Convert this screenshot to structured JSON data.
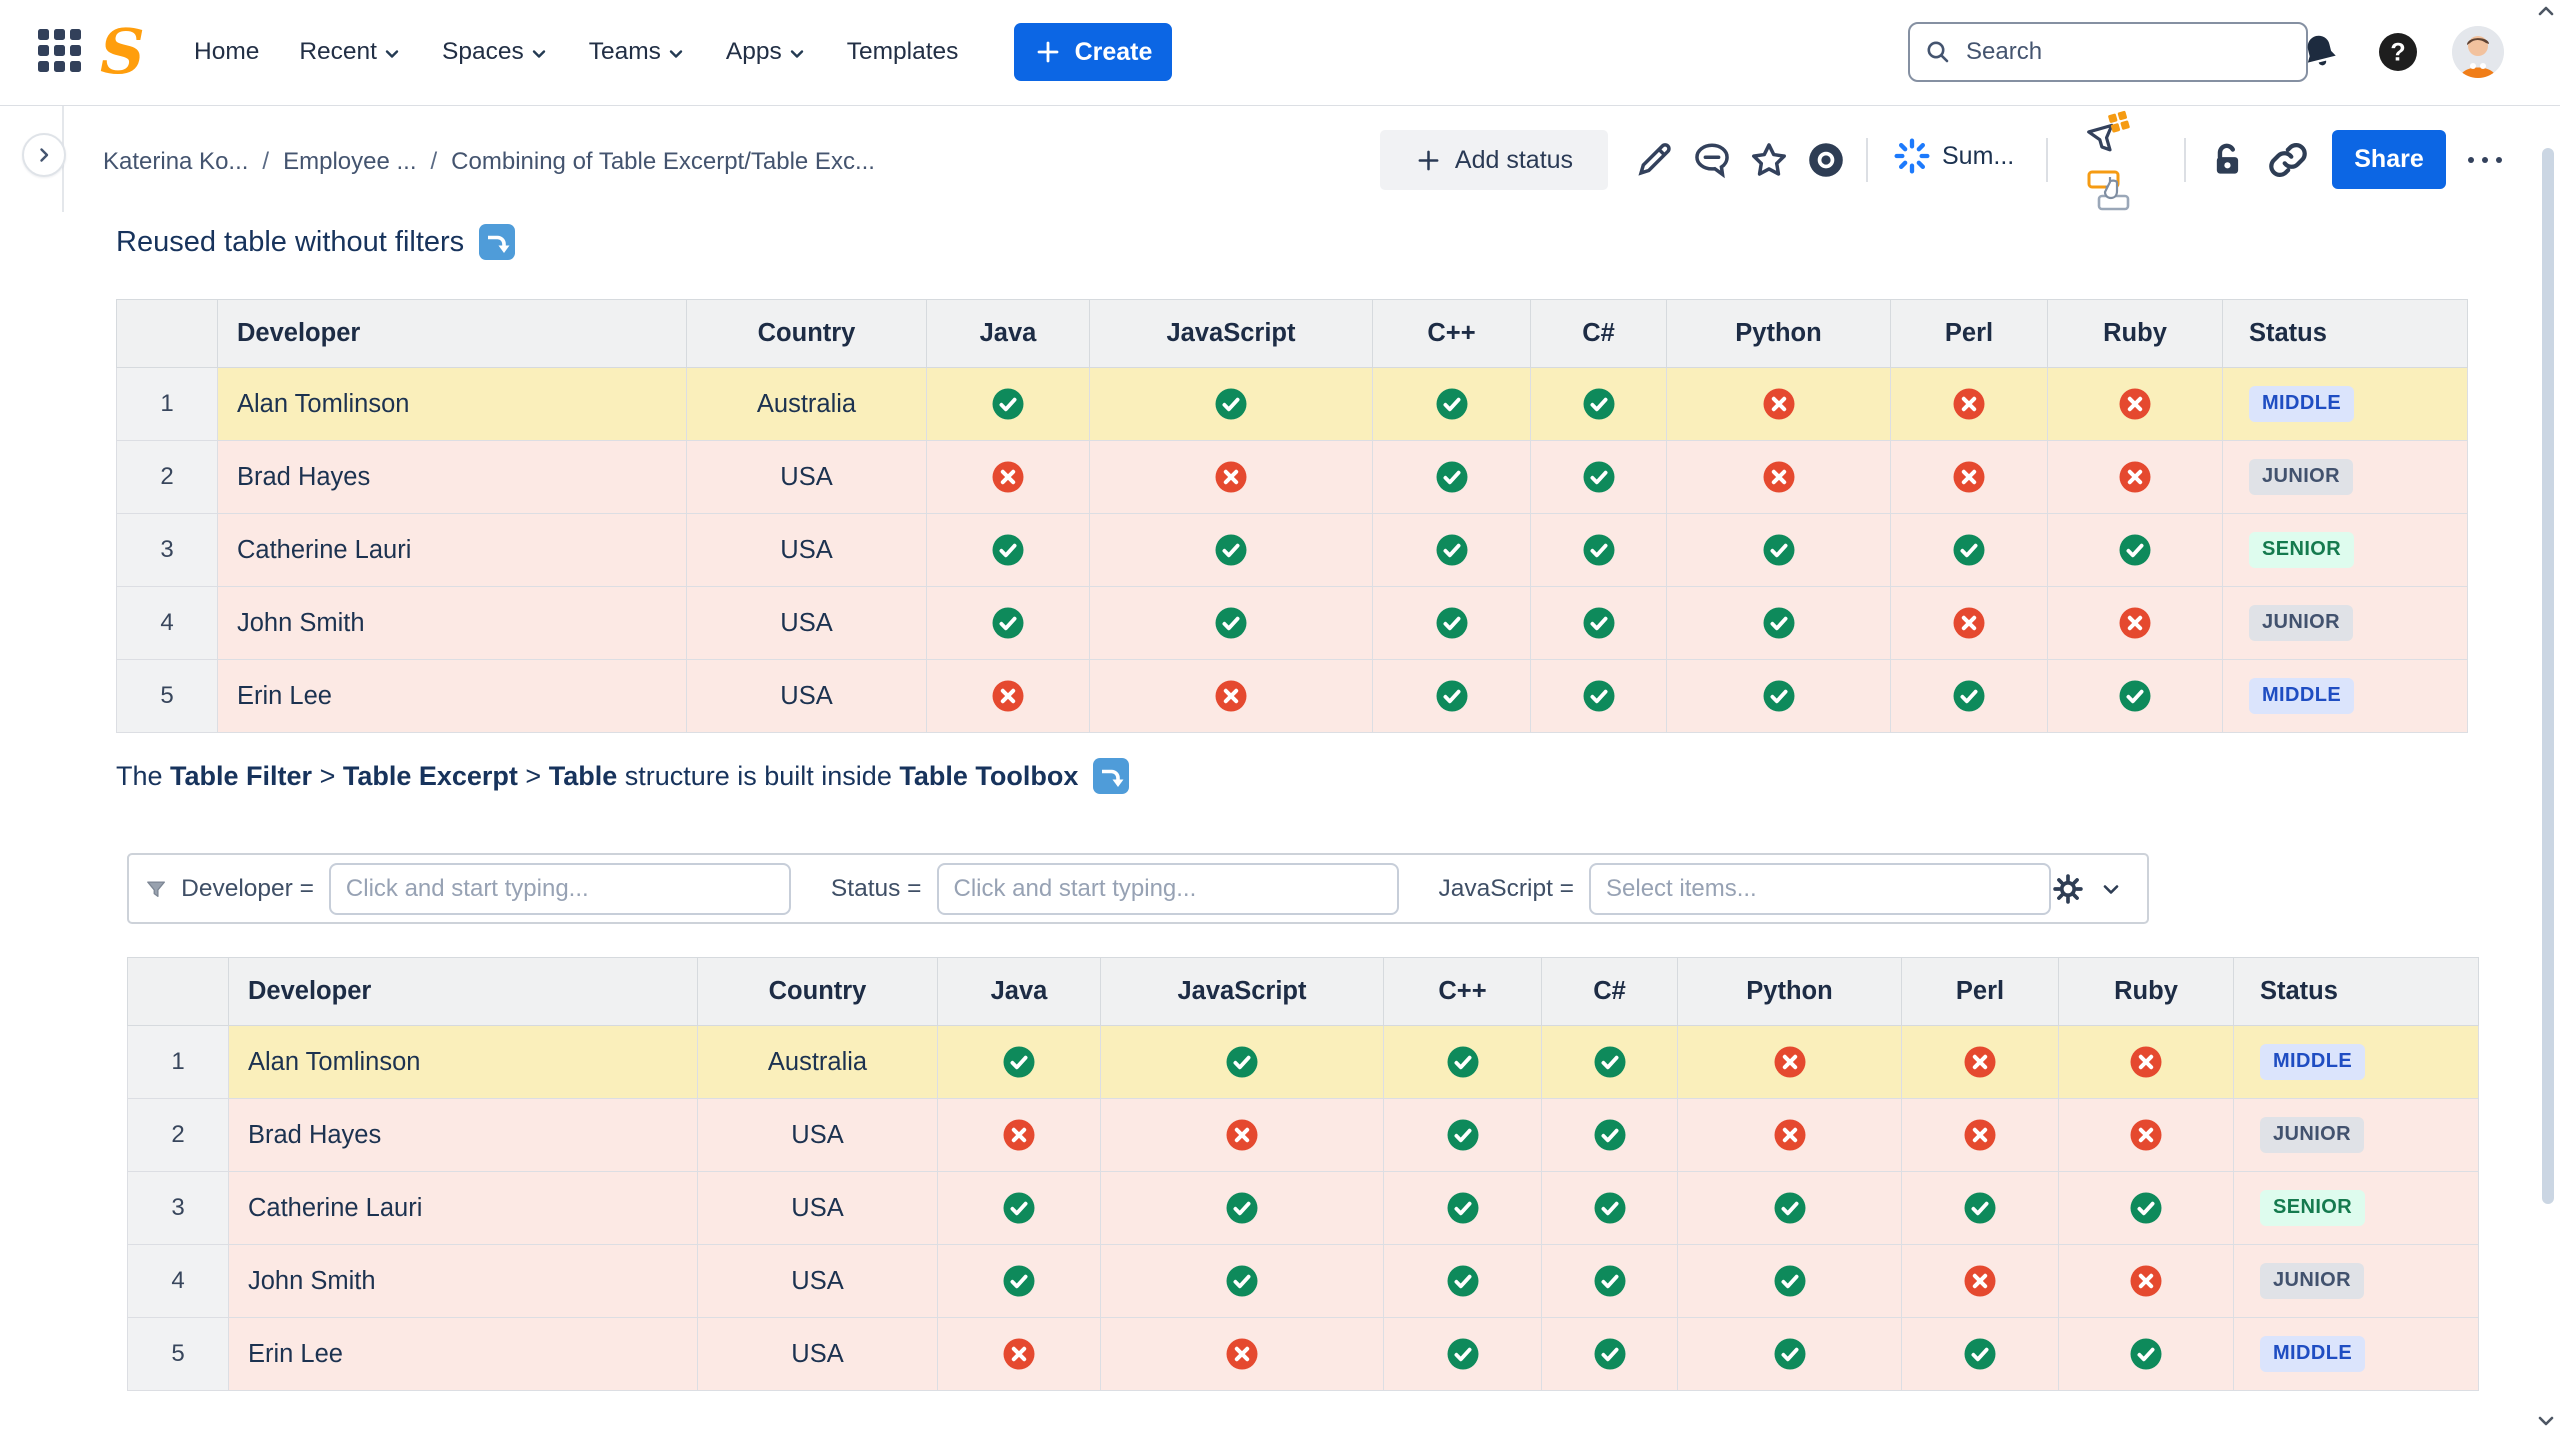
{
  "topbar": {
    "nav": [
      {
        "label": "Home",
        "chevron": false
      },
      {
        "label": "Recent",
        "chevron": true
      },
      {
        "label": "Spaces",
        "chevron": true
      },
      {
        "label": "Teams",
        "chevron": true
      },
      {
        "label": "Apps",
        "chevron": true
      },
      {
        "label": "Templates",
        "chevron": false
      }
    ],
    "create_label": "Create",
    "search_placeholder": "Search"
  },
  "page_header": {
    "breadcrumbs": [
      "Katerina Ko...",
      "Employee ...",
      "Combining of Table Excerpt/Table Exc..."
    ],
    "add_status_label": "Add status",
    "summarize_label": "Sum...",
    "share_label": "Share"
  },
  "content": {
    "section1_heading": "Reused table without filters",
    "paragraph_segments": [
      {
        "text": "The ",
        "bold": false
      },
      {
        "text": "Table Filter",
        "bold": true
      },
      {
        "text": " > ",
        "bold": false
      },
      {
        "text": "Table Excerpt",
        "bold": true
      },
      {
        "text": " > ",
        "bold": false
      },
      {
        "text": "Table",
        "bold": true
      },
      {
        "text": " structure is built inside ",
        "bold": false
      },
      {
        "text": "Table Toolbox",
        "bold": true
      }
    ],
    "filter_bar": {
      "filters": [
        {
          "label": "Developer =",
          "placeholder": "Click and start typing...",
          "name": "developer"
        },
        {
          "label": "Status =",
          "placeholder": "Click and start typing...",
          "name": "status"
        },
        {
          "label": "JavaScript =",
          "placeholder": "Select items...",
          "name": "javascript"
        }
      ]
    },
    "table": {
      "columns": [
        "",
        "Developer",
        "Country",
        "Java",
        "JavaScript",
        "C++",
        "C#",
        "Python",
        "Perl",
        "Ruby",
        "Status"
      ],
      "rows": [
        {
          "num": "1",
          "developer": "Alan Tomlinson",
          "country": "Australia",
          "skills": [
            true,
            true,
            true,
            true,
            false,
            false,
            false
          ],
          "status": "MIDDLE",
          "status_color": "blue",
          "highlight": "yellow"
        },
        {
          "num": "2",
          "developer": "Brad Hayes",
          "country": "USA",
          "skills": [
            false,
            false,
            true,
            true,
            false,
            false,
            false
          ],
          "status": "JUNIOR",
          "status_color": "gray",
          "highlight": "pink"
        },
        {
          "num": "3",
          "developer": "Catherine Lauri",
          "country": "USA",
          "skills": [
            true,
            true,
            true,
            true,
            true,
            true,
            true
          ],
          "status": "SENIOR",
          "status_color": "green",
          "highlight": "pink"
        },
        {
          "num": "4",
          "developer": "John Smith",
          "country": "USA",
          "skills": [
            true,
            true,
            true,
            true,
            true,
            false,
            false
          ],
          "status": "JUNIOR",
          "status_color": "gray",
          "highlight": "pink"
        },
        {
          "num": "5",
          "developer": "Erin Lee",
          "country": "USA",
          "skills": [
            false,
            false,
            true,
            true,
            true,
            true,
            true
          ],
          "status": "MIDDLE",
          "status_color": "blue",
          "highlight": "pink"
        }
      ]
    },
    "colors": {
      "accent_blue": "#0c66e4",
      "check_green": "#0e8a5b",
      "cross_red": "#e5492f",
      "row_highlight_yellow": "#faefbb",
      "row_highlight_pink": "#fce9e4",
      "badge_blue_bg": "#dbe4fc",
      "badge_blue_text": "#1f4dc2",
      "badge_gray_bg": "#e0e2e7",
      "badge_gray_text": "#42526e",
      "badge_green_bg": "#defcee",
      "badge_green_text": "#157a4e",
      "include_icon_blue": "#4f9cd9"
    }
  }
}
